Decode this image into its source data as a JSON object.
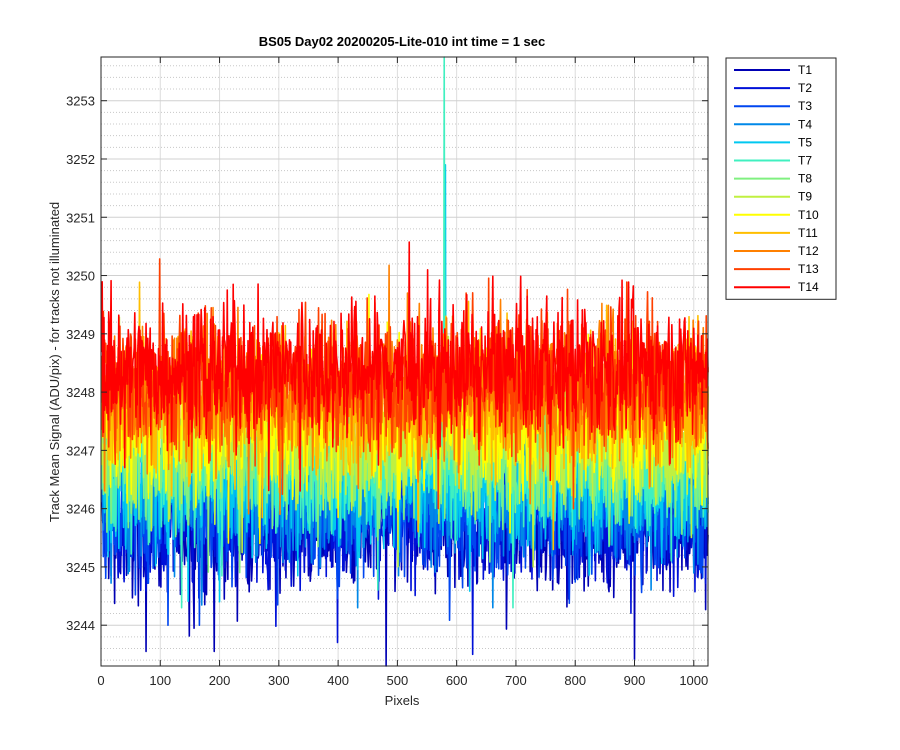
{
  "chart_data": {
    "type": "line",
    "title": "BS05 Day02 20200205-Lite-010 int time = 1 sec",
    "xlabel": "Pixels",
    "ylabel": "Track Mean Signal (ADU/pix) - for tracks not illuminated",
    "xlim": [
      0,
      1024
    ],
    "ylim": [
      3243.3,
      3253.75
    ],
    "xticks": [
      0,
      100,
      200,
      300,
      400,
      500,
      600,
      700,
      800,
      900,
      1000
    ],
    "yticks": [
      3244,
      3245,
      3246,
      3247,
      3248,
      3249,
      3250,
      3251,
      3252,
      3253
    ],
    "grid": true,
    "minor_grid": true,
    "legend_position": "outside-top-right",
    "x_points": 1024,
    "series": [
      {
        "name": "T1",
        "color": "#0000b4",
        "mean": 3245.7,
        "spread": 0.55,
        "min": 3243.3,
        "max": 3249.0
      },
      {
        "name": "T2",
        "color": "#0010d8",
        "mean": 3245.9,
        "spread": 0.55,
        "min": 3243.5,
        "max": 3249.2
      },
      {
        "name": "T3",
        "color": "#0046f0",
        "mean": 3246.0,
        "spread": 0.55,
        "min": 3244.0,
        "max": 3249.3
      },
      {
        "name": "T4",
        "color": "#0088e8",
        "mean": 3246.3,
        "spread": 0.55,
        "min": 3244.3,
        "max": 3249.5
      },
      {
        "name": "T5",
        "color": "#00c8f0",
        "mean": 3246.5,
        "spread": 0.55,
        "min": 3244.4,
        "max": 3251.9
      },
      {
        "name": "T7",
        "color": "#40f0c0",
        "mean": 3246.8,
        "spread": 0.55,
        "min": 3244.3,
        "max": 3253.75
      },
      {
        "name": "T8",
        "color": "#80f080",
        "mean": 3247.0,
        "spread": 0.55,
        "min": 3244.8,
        "max": 3250.2
      },
      {
        "name": "T9",
        "color": "#c0f040",
        "mean": 3247.2,
        "spread": 0.55,
        "min": 3245.0,
        "max": 3250.4
      },
      {
        "name": "T10",
        "color": "#ffff00",
        "mean": 3247.5,
        "spread": 0.55,
        "min": 3245.2,
        "max": 3250.6
      },
      {
        "name": "T11",
        "color": "#ffbe00",
        "mean": 3247.8,
        "spread": 0.55,
        "min": 3245.3,
        "max": 3251.2
      },
      {
        "name": "T12",
        "color": "#ff8000",
        "mean": 3248.0,
        "spread": 0.55,
        "min": 3245.5,
        "max": 3251.4
      },
      {
        "name": "T13",
        "color": "#ff4000",
        "mean": 3248.2,
        "spread": 0.55,
        "min": 3246.0,
        "max": 3251.6
      },
      {
        "name": "T14",
        "color": "#ff0000",
        "mean": 3248.4,
        "spread": 0.55,
        "min": 3246.2,
        "max": 3251.5
      }
    ],
    "spikes": [
      {
        "series": "T7",
        "x": 578,
        "y": 3253.75
      },
      {
        "series": "T5",
        "x": 580,
        "y": 3251.9
      },
      {
        "series": "T1",
        "x": 480,
        "y": 3243.3
      },
      {
        "series": "T1",
        "x": 75,
        "y": 3243.55
      },
      {
        "series": "T1",
        "x": 190,
        "y": 3243.55
      },
      {
        "series": "T7",
        "x": 135,
        "y": 3244.3
      }
    ]
  }
}
